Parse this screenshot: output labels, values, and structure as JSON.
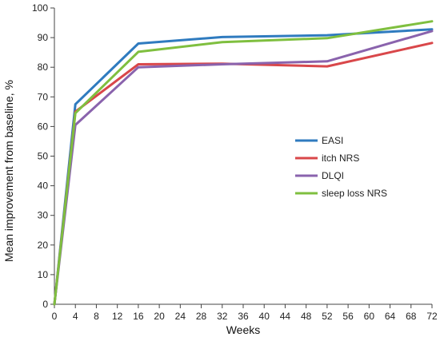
{
  "chart_data": {
    "type": "line",
    "title": "",
    "xlabel": "Weeks",
    "ylabel": "Mean improvement from baseline, %",
    "xlim": [
      0,
      72
    ],
    "ylim": [
      0,
      100
    ],
    "x_ticks": [
      "0",
      "4",
      "8",
      "12",
      "16",
      "20",
      "24",
      "28",
      "32",
      "36",
      "40",
      "44",
      "48",
      "52",
      "56",
      "60",
      "64",
      "68",
      "72"
    ],
    "y_ticks": [
      "0",
      "10",
      "20",
      "30",
      "40",
      "50",
      "60",
      "70",
      "80",
      "90",
      "100"
    ],
    "grid": false,
    "legend_position": "right",
    "series": [
      {
        "name": "EASI",
        "color": "#2f7bbf",
        "x": [
          0,
          4,
          16,
          32,
          52,
          72
        ],
        "y": [
          0,
          67.5,
          88,
          90.2,
          90.8,
          92.8
        ]
      },
      {
        "name": "itch NRS",
        "color": "#d9474a",
        "x": [
          0,
          4,
          16,
          32,
          52,
          72
        ],
        "y": [
          0,
          65,
          81,
          81.2,
          80.3,
          88.2
        ]
      },
      {
        "name": "DLQI",
        "color": "#8a63ad",
        "x": [
          0,
          4,
          16,
          32,
          52,
          72
        ],
        "y": [
          0,
          60.5,
          80,
          81,
          82,
          92.2
        ]
      },
      {
        "name": "sleep loss NRS",
        "color": "#7fbf3f",
        "x": [
          0,
          4,
          16,
          32,
          52,
          72
        ],
        "y": [
          0,
          64.5,
          85.2,
          88.5,
          89.8,
          95.5
        ]
      }
    ]
  }
}
